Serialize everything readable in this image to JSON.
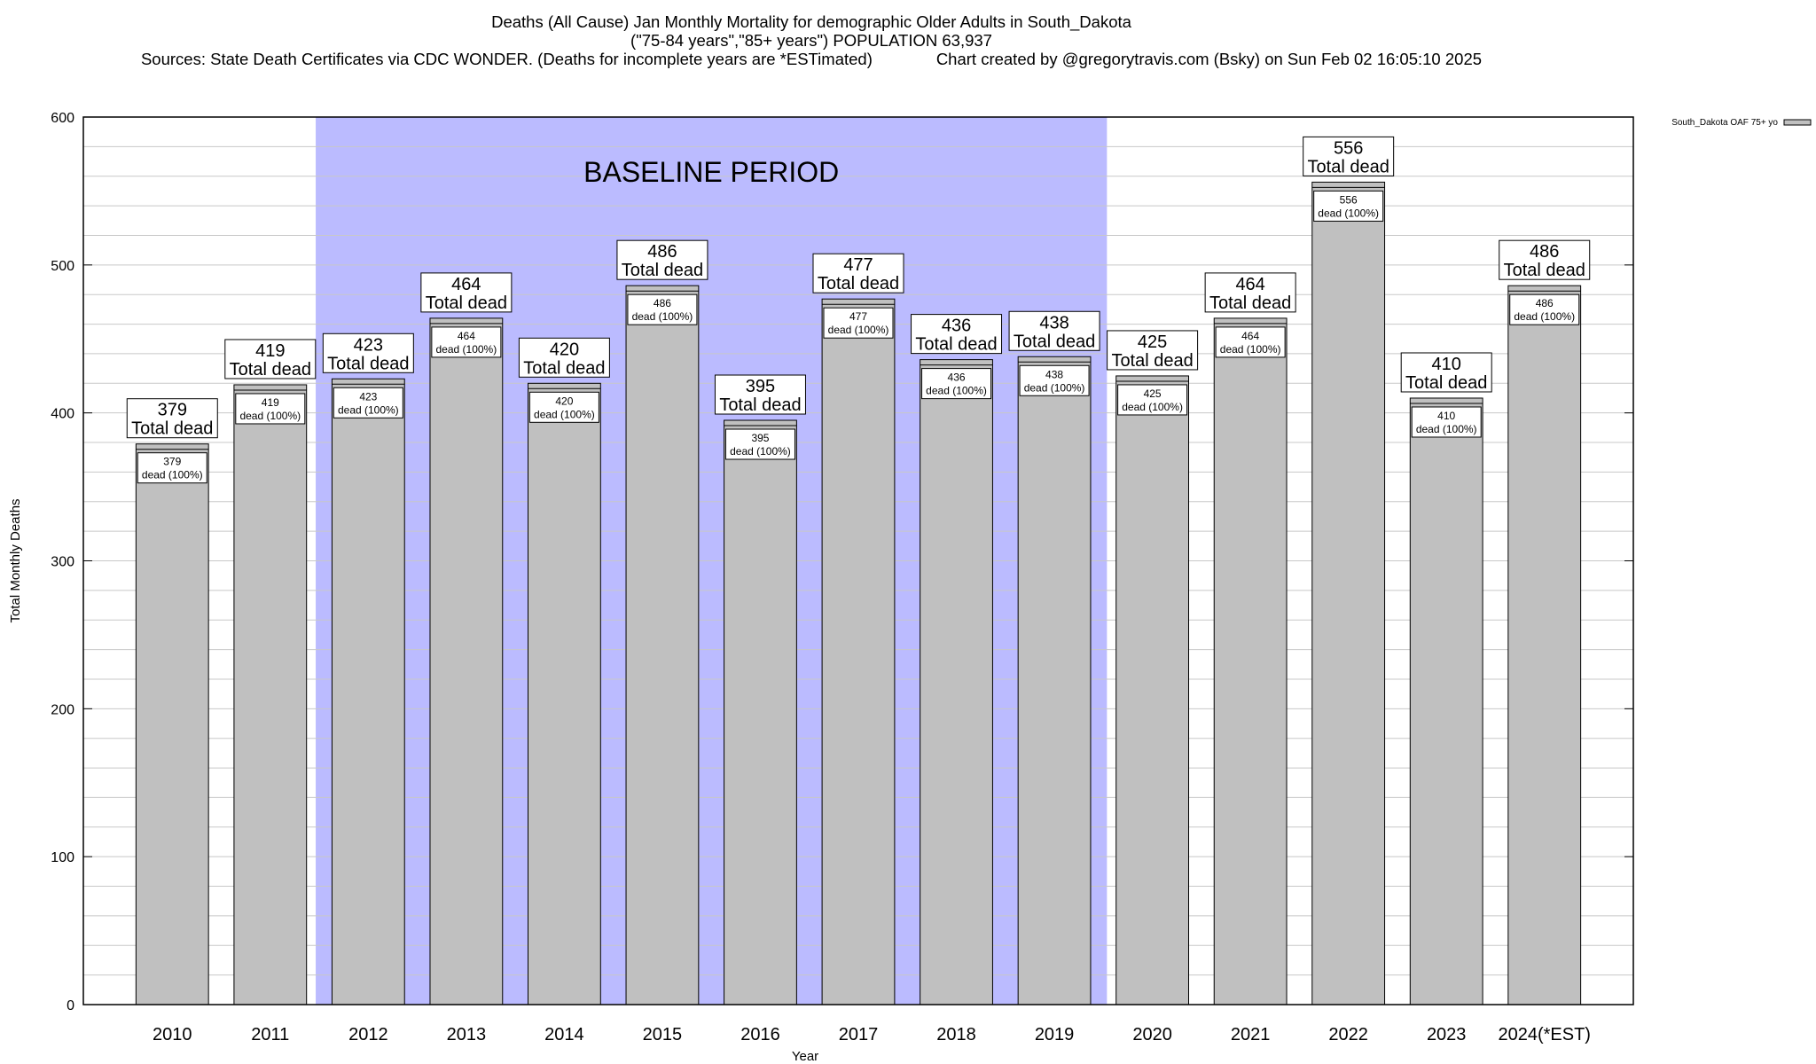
{
  "header": {
    "line1": "Deaths (All Cause) Jan Monthly Mortality for demographic Older Adults in South_Dakota",
    "line2": "(\"75-84 years\",\"85+ years\") POPULATION 63,937",
    "line3": "Sources: State Death Certificates via CDC WONDER. (Deaths for incomplete years are *ESTimated)              Chart created by @gregorytravis.com (Bsky) on Sun Feb 02 16:05:10 2025"
  },
  "chart_data": {
    "type": "bar",
    "xlabel": "Year",
    "ylabel": "Total Monthly Deaths",
    "ylim": [
      0,
      600
    ],
    "yticks": [
      0,
      100,
      200,
      300,
      400,
      500,
      600
    ],
    "grid": true,
    "categories": [
      "2010",
      "2011",
      "2012",
      "2013",
      "2014",
      "2015",
      "2016",
      "2017",
      "2018",
      "2019",
      "2020",
      "2021",
      "2022",
      "2023",
      "2024(*EST)"
    ],
    "series": [
      {
        "name": "South_Dakota OAF 75+ yo",
        "values": [
          379,
          419,
          423,
          464,
          420,
          486,
          395,
          477,
          436,
          438,
          425,
          464,
          556,
          410,
          486
        ]
      }
    ],
    "top_label_text": "Total dead",
    "inner_label_text": "dead (100%)",
    "baseline": {
      "label": "BASELINE PERIOD",
      "from": "2012",
      "to": "2019"
    },
    "legend_position": "top-right",
    "colors": {
      "bar": "#c0c0c0",
      "baseline": "#bbbbff",
      "grid": "#c8c8c8"
    }
  }
}
